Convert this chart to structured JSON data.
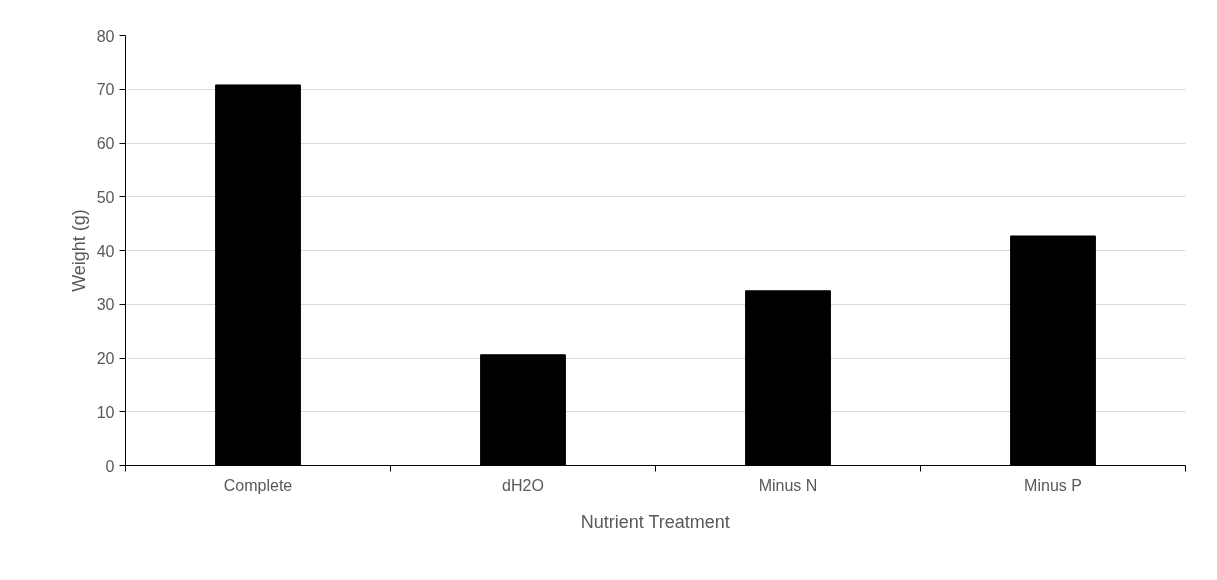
{
  "chart_data": {
    "type": "bar",
    "xlabel": "Nutrient Treatment",
    "ylabel": "Weight (g)",
    "categories": [
      "Complete",
      "dH2O",
      "Minus N",
      "Minus P"
    ],
    "values": [
      70.8,
      20.6,
      32.5,
      42.7
    ],
    "color": "#000000",
    "ylim": [
      0,
      80
    ],
    "yticks": [
      0,
      10,
      20,
      30,
      40,
      50,
      60,
      70,
      80
    ],
    "grid": "y"
  }
}
